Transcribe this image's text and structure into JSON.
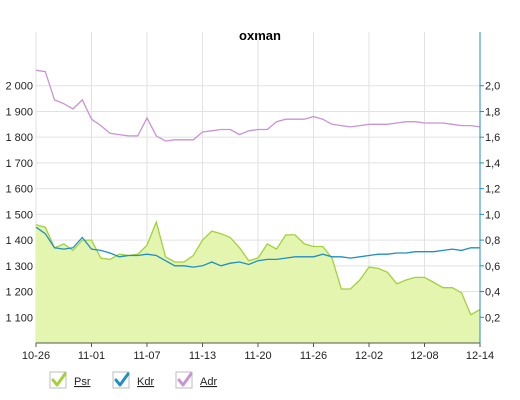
{
  "chart_data": {
    "type": "line",
    "title": "oxman",
    "grid": true,
    "legend_position": "bottom-left",
    "x_tick_labels": [
      "10-26",
      "11-01",
      "11-07",
      "11-13",
      "11-20",
      "11-26",
      "12-02",
      "12-08",
      "12-14"
    ],
    "y_left": {
      "ticks": [
        "1 100",
        "1 200",
        "1 300",
        "1 400",
        "1 500",
        "1 600",
        "1 700",
        "1 800",
        "1 900",
        "2 000"
      ],
      "ylim": [
        1000,
        2100
      ]
    },
    "y_right": {
      "ticks": [
        "0,2",
        "0,4",
        "0,6",
        "0,8",
        "1,0",
        "1,2",
        "1,4",
        "1,6",
        "1,8",
        "2,0"
      ],
      "ylim": [
        0,
        2.2
      ]
    },
    "series": [
      {
        "name": "Psr",
        "kind": "area",
        "axis": "left",
        "color": "#a3d13a",
        "fill": "#e4f5b0",
        "values": [
          1460,
          1450,
          1370,
          1385,
          1360,
          1400,
          1400,
          1330,
          1325,
          1345,
          1340,
          1345,
          1380,
          1470,
          1335,
          1315,
          1315,
          1340,
          1400,
          1435,
          1425,
          1410,
          1370,
          1320,
          1330,
          1385,
          1365,
          1420,
          1420,
          1385,
          1375,
          1375,
          1330,
          1210,
          1210,
          1245,
          1295,
          1290,
          1275,
          1230,
          1245,
          1255,
          1255,
          1235,
          1215,
          1215,
          1195,
          1110,
          1130
        ]
      },
      {
        "name": "Kdr",
        "kind": "line",
        "axis": "right",
        "color": "#1f8fc4",
        "values": [
          0.9,
          0.85,
          0.74,
          0.73,
          0.74,
          0.82,
          0.73,
          0.72,
          0.7,
          0.67,
          0.68,
          0.68,
          0.69,
          0.68,
          0.64,
          0.6,
          0.6,
          0.59,
          0.6,
          0.63,
          0.6,
          0.62,
          0.63,
          0.61,
          0.64,
          0.65,
          0.65,
          0.66,
          0.67,
          0.67,
          0.67,
          0.69,
          0.67,
          0.67,
          0.66,
          0.67,
          0.68,
          0.69,
          0.69,
          0.7,
          0.7,
          0.71,
          0.71,
          0.71,
          0.72,
          0.73,
          0.72,
          0.74,
          0.74
        ]
      },
      {
        "name": "Adr",
        "kind": "line",
        "axis": "right",
        "color": "#c894d4",
        "values": [
          2.12,
          2.11,
          1.89,
          1.86,
          1.82,
          1.89,
          1.74,
          1.69,
          1.63,
          1.62,
          1.61,
          1.61,
          1.75,
          1.61,
          1.57,
          1.58,
          1.58,
          1.58,
          1.64,
          1.65,
          1.66,
          1.66,
          1.62,
          1.65,
          1.66,
          1.66,
          1.72,
          1.74,
          1.74,
          1.74,
          1.76,
          1.74,
          1.7,
          1.69,
          1.68,
          1.69,
          1.7,
          1.7,
          1.7,
          1.71,
          1.72,
          1.72,
          1.71,
          1.71,
          1.71,
          1.7,
          1.69,
          1.69,
          1.68
        ]
      }
    ]
  }
}
